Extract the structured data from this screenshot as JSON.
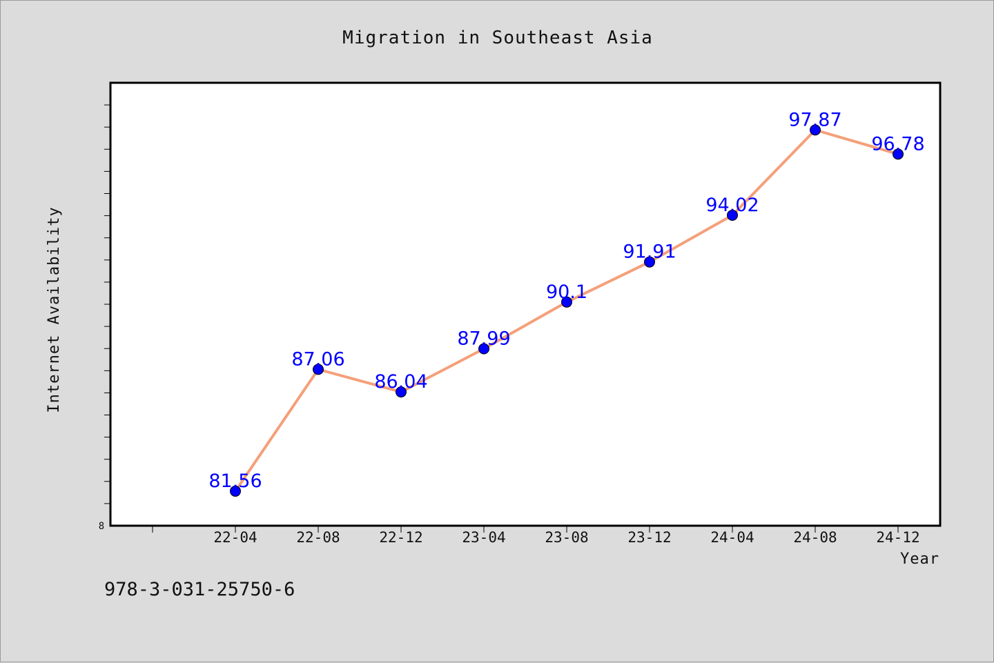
{
  "chart_data": {
    "type": "line",
    "title": "Migration in Southeast Asia",
    "xlabel": "Year",
    "ylabel": "Internet Availability",
    "categories": [
      "22-04",
      "22-08",
      "22-12",
      "23-04",
      "23-08",
      "23-12",
      "24-04",
      "24-08",
      "24-12"
    ],
    "series": [
      {
        "values": [
          81.56,
          87.06,
          86.04,
          87.99,
          90.1,
          91.91,
          94.02,
          97.87,
          96.78
        ],
        "line_color": "#f4a07a",
        "marker_color": "#0000ff"
      }
    ],
    "ylim": [
      80,
      100
    ],
    "y_tick_labels": [
      "8"
    ],
    "grid": false,
    "data_label_color": "#0000ff"
  },
  "footer": {
    "isbn": "978-3-031-25750-6"
  },
  "colors": {
    "background": "#dcdcdc",
    "plot_background": "#ffffff",
    "axis": "#000000"
  }
}
